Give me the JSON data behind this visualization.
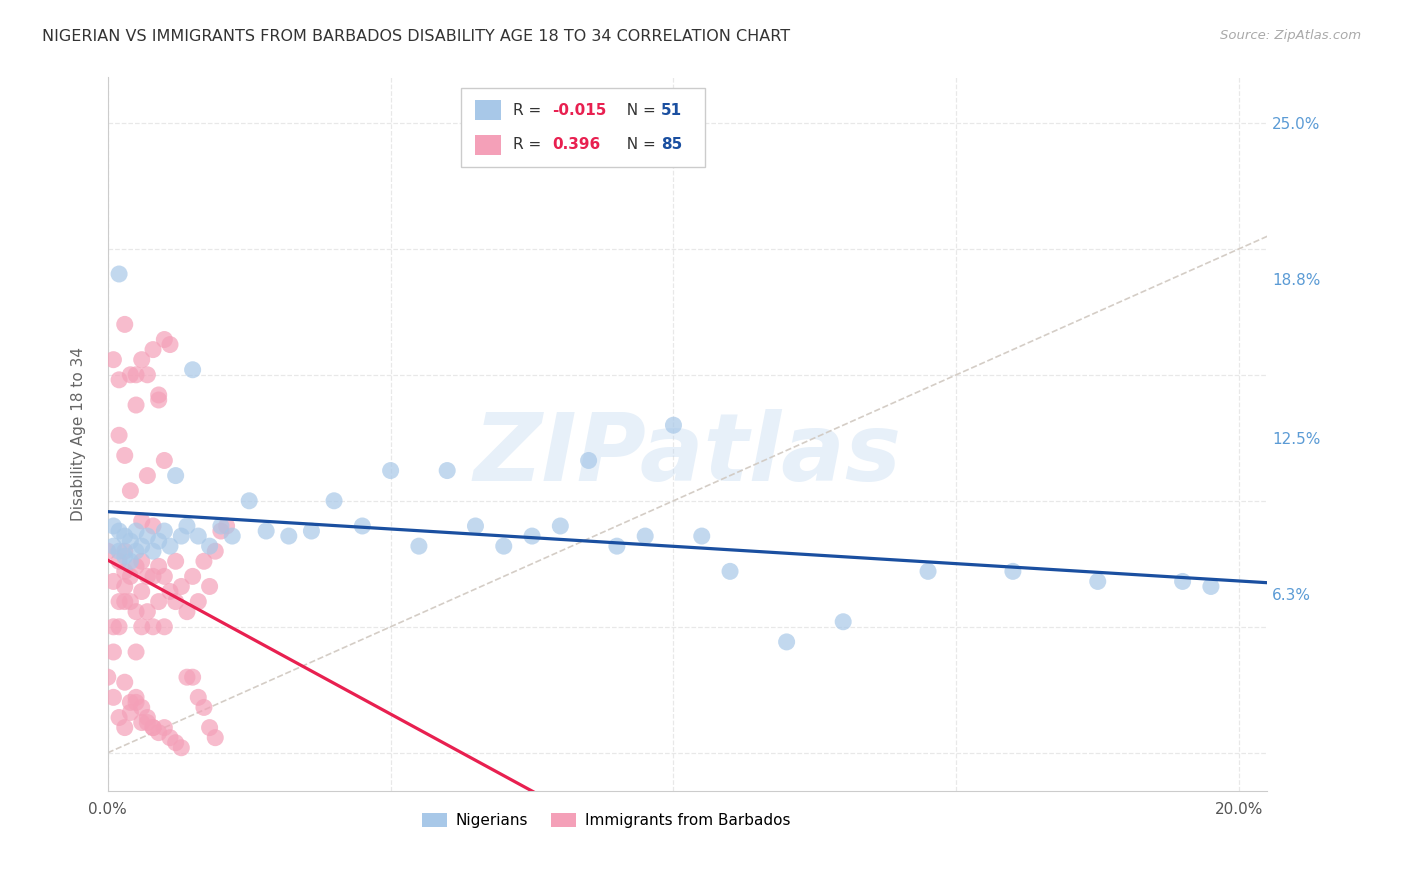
{
  "title": "NIGERIAN VS IMMIGRANTS FROM BARBADOS DISABILITY AGE 18 TO 34 CORRELATION CHART",
  "source": "Source: ZipAtlas.com",
  "ylabel": "Disability Age 18 to 34",
  "xlim": [
    0.0,
    0.205
  ],
  "ylim": [
    -0.015,
    0.268
  ],
  "xticks": [
    0.0,
    0.05,
    0.1,
    0.15,
    0.2
  ],
  "xticklabels": [
    "0.0%",
    "",
    "",
    "",
    "20.0%"
  ],
  "yticks_right": [
    0.063,
    0.125,
    0.188,
    0.25
  ],
  "yticklabels_right": [
    "6.3%",
    "12.5%",
    "18.8%",
    "25.0%"
  ],
  "legend_blue_R": "-0.015",
  "legend_blue_N": "51",
  "legend_pink_R": "0.396",
  "legend_pink_N": "85",
  "legend_label_blue": "Nigerians",
  "legend_label_pink": "Immigrants from Barbados",
  "watermark": "ZIPatlas",
  "blue_color": "#a8c8e8",
  "pink_color": "#f4a0b8",
  "blue_line_color": "#1a4fa0",
  "pink_line_color": "#e82050",
  "diag_color": "#d0c8c0",
  "bg_color": "#ffffff",
  "grid_color": "#e8e8e8",
  "nigerian_x": [
    0.001,
    0.001,
    0.002,
    0.002,
    0.003,
    0.003,
    0.004,
    0.004,
    0.005,
    0.005,
    0.006,
    0.007,
    0.008,
    0.009,
    0.01,
    0.011,
    0.012,
    0.013,
    0.014,
    0.015,
    0.016,
    0.018,
    0.02,
    0.022,
    0.025,
    0.028,
    0.032,
    0.036,
    0.04,
    0.045,
    0.05,
    0.055,
    0.06,
    0.065,
    0.07,
    0.075,
    0.08,
    0.085,
    0.09,
    0.095,
    0.1,
    0.105,
    0.11,
    0.12,
    0.13,
    0.145,
    0.16,
    0.175,
    0.19,
    0.195,
    0.002
  ],
  "nigerian_y": [
    0.082,
    0.09,
    0.08,
    0.088,
    0.078,
    0.086,
    0.076,
    0.084,
    0.08,
    0.088,
    0.082,
    0.086,
    0.08,
    0.084,
    0.088,
    0.082,
    0.11,
    0.086,
    0.09,
    0.152,
    0.086,
    0.082,
    0.09,
    0.086,
    0.1,
    0.088,
    0.086,
    0.088,
    0.1,
    0.09,
    0.112,
    0.082,
    0.112,
    0.09,
    0.082,
    0.086,
    0.09,
    0.116,
    0.082,
    0.086,
    0.13,
    0.086,
    0.072,
    0.044,
    0.052,
    0.072,
    0.072,
    0.068,
    0.068,
    0.066,
    0.19
  ],
  "barbados_x": [
    0.0,
    0.0,
    0.001,
    0.001,
    0.001,
    0.002,
    0.002,
    0.002,
    0.003,
    0.003,
    0.003,
    0.003,
    0.004,
    0.004,
    0.005,
    0.005,
    0.005,
    0.006,
    0.006,
    0.006,
    0.007,
    0.007,
    0.008,
    0.008,
    0.009,
    0.009,
    0.01,
    0.01,
    0.011,
    0.012,
    0.012,
    0.013,
    0.014,
    0.015,
    0.016,
    0.017,
    0.018,
    0.019,
    0.02,
    0.021,
    0.001,
    0.002,
    0.003,
    0.004,
    0.005,
    0.006,
    0.007,
    0.008,
    0.009,
    0.01,
    0.002,
    0.003,
    0.004,
    0.005,
    0.006,
    0.007,
    0.008,
    0.009,
    0.01,
    0.011,
    0.001,
    0.002,
    0.003,
    0.004,
    0.005,
    0.006,
    0.007,
    0.008,
    0.003,
    0.004,
    0.005,
    0.006,
    0.007,
    0.008,
    0.009,
    0.01,
    0.011,
    0.012,
    0.013,
    0.014,
    0.015,
    0.016,
    0.017,
    0.018,
    0.019
  ],
  "barbados_y": [
    0.08,
    0.03,
    0.04,
    0.05,
    0.068,
    0.05,
    0.06,
    0.076,
    0.06,
    0.066,
    0.072,
    0.08,
    0.06,
    0.07,
    0.04,
    0.056,
    0.074,
    0.05,
    0.064,
    0.076,
    0.056,
    0.07,
    0.05,
    0.07,
    0.06,
    0.074,
    0.05,
    0.07,
    0.064,
    0.06,
    0.076,
    0.066,
    0.056,
    0.07,
    0.06,
    0.076,
    0.066,
    0.08,
    0.088,
    0.09,
    0.156,
    0.148,
    0.17,
    0.15,
    0.15,
    0.156,
    0.15,
    0.16,
    0.142,
    0.164,
    0.126,
    0.118,
    0.104,
    0.138,
    0.092,
    0.11,
    0.09,
    0.14,
    0.116,
    0.162,
    0.022,
    0.014,
    0.01,
    0.016,
    0.02,
    0.012,
    0.014,
    0.01,
    0.028,
    0.02,
    0.022,
    0.018,
    0.012,
    0.01,
    0.008,
    0.01,
    0.006,
    0.004,
    0.002,
    0.03,
    0.03,
    0.022,
    0.018,
    0.01,
    0.006
  ]
}
